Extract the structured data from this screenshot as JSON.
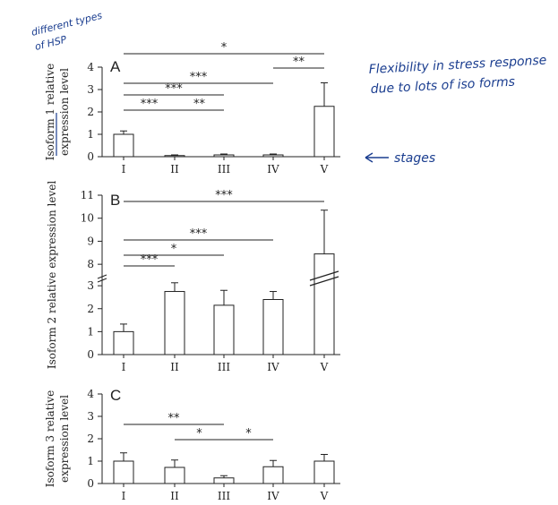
{
  "chart_data": [
    {
      "type": "bar",
      "panel": "A",
      "ylabel": "Isoform 1 relative expression level",
      "ylabel_lines": [
        "Isoform 1 relative",
        "expression level"
      ],
      "categories": [
        "I",
        "II",
        "III",
        "IV",
        "V"
      ],
      "values": [
        1.0,
        0.05,
        0.08,
        0.08,
        2.25
      ],
      "errors": [
        0.15,
        0.03,
        0.04,
        0.04,
        1.05
      ],
      "ylim": [
        0,
        4
      ],
      "yticks": [
        0,
        1,
        2,
        3,
        4
      ],
      "significance": [
        {
          "from": "I",
          "to": "V",
          "label": "*"
        },
        {
          "from": "IV",
          "to": "V",
          "label": "**"
        },
        {
          "from": "I",
          "to": "IV",
          "label": "***"
        },
        {
          "from": "I",
          "to": "III",
          "label": "***"
        },
        {
          "from": "I",
          "to": "II",
          "label": "***"
        },
        {
          "from": "II",
          "to": "III",
          "label": "**"
        }
      ]
    },
    {
      "type": "bar",
      "panel": "B",
      "ylabel": "Isoform 2 relative expression level",
      "categories": [
        "I",
        "II",
        "III",
        "IV",
        "V"
      ],
      "values": [
        1.0,
        2.75,
        2.15,
        2.4,
        8.45
      ],
      "errors": [
        0.33,
        0.38,
        0.65,
        0.35,
        1.9
      ],
      "ylim": [
        0,
        11
      ],
      "axis_break": [
        3.2,
        7.5
      ],
      "yticks": [
        0,
        1,
        2,
        3,
        8,
        9,
        10,
        11
      ],
      "significance": [
        {
          "from": "I",
          "to": "V",
          "label": "***"
        },
        {
          "from": "I",
          "to": "IV",
          "label": "***"
        },
        {
          "from": "I",
          "to": "III",
          "label": "*"
        },
        {
          "from": "I",
          "to": "II",
          "label": "***"
        }
      ]
    },
    {
      "type": "bar",
      "panel": "C",
      "ylabel": "Isoform 3 relative expression level",
      "ylabel_lines": [
        "Isoform 3 relative",
        "expression level"
      ],
      "categories": [
        "I",
        "II",
        "III",
        "IV",
        "V"
      ],
      "values": [
        1.0,
        0.72,
        0.25,
        0.75,
        1.0
      ],
      "errors": [
        0.37,
        0.33,
        0.1,
        0.28,
        0.3
      ],
      "ylim": [
        0,
        4
      ],
      "yticks": [
        0,
        1,
        2,
        3,
        4
      ],
      "significance": [
        {
          "from": "I",
          "to": "III",
          "label": "**"
        },
        {
          "from": "II",
          "to": "III",
          "label": "*"
        },
        {
          "from": "III",
          "to": "IV",
          "label": "*"
        }
      ]
    }
  ],
  "annotations": {
    "top_left_line1": "different types",
    "top_left_line2": "of HSP",
    "right_line1": "Flexibility in stress response",
    "right_line2": "due to lots of iso forms",
    "stages": "stages"
  },
  "colors": {
    "ink": "#222222",
    "handwriting": "#1a3d8f",
    "bar_fill": "#ffffff"
  }
}
